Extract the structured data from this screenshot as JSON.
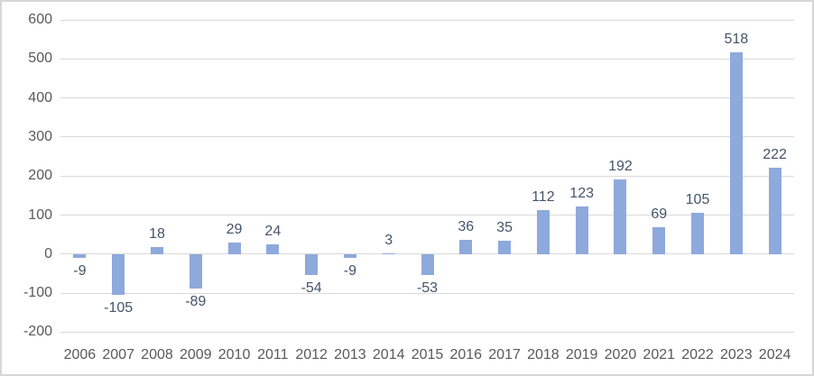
{
  "chart_data": {
    "type": "bar",
    "title": "",
    "xlabel": "",
    "ylabel": "",
    "categories": [
      "2006",
      "2007",
      "2008",
      "2009",
      "2010",
      "2011",
      "2012",
      "2013",
      "2014",
      "2015",
      "2016",
      "2017",
      "2018",
      "2019",
      "2020",
      "2021",
      "2022",
      "2023",
      "2024"
    ],
    "values": [
      -9,
      -105,
      18,
      -89,
      29,
      24,
      -54,
      -9,
      3,
      -53,
      36,
      35,
      112,
      123,
      192,
      69,
      105,
      518,
      222
    ],
    "data_labels": [
      "-9",
      "-105",
      "18",
      "-89",
      "29",
      "24",
      "-54",
      "-9",
      "3",
      "-53",
      "36",
      "35",
      "112",
      "123",
      "192",
      "69",
      "105",
      "518",
      "222"
    ],
    "y_ticks": [
      600,
      500,
      400,
      300,
      200,
      100,
      0,
      -100,
      -200
    ],
    "ylim": [
      -200,
      600
    ],
    "grid": true,
    "legend": false,
    "data_labels_position": "outside-end",
    "colors": {
      "bar": "#8EA9DB",
      "data_label": "#44546A",
      "axis_text": "#595959",
      "gridline": "#D9D9D9",
      "frame_border": "#D6D6D6",
      "background": "#FFFFFF"
    }
  }
}
